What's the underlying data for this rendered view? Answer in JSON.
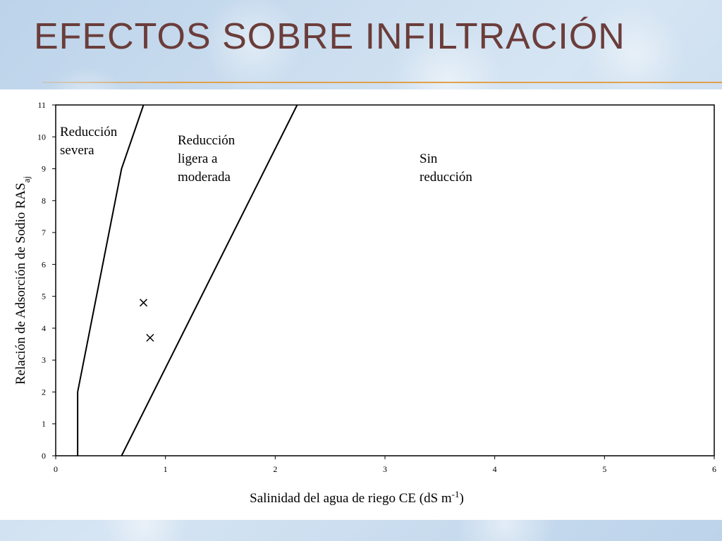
{
  "slide": {
    "title": "EFECTOS SOBRE INFILTRACIÓN"
  },
  "chart_data": {
    "type": "line",
    "xlim": [
      0,
      6
    ],
    "ylim": [
      0,
      11
    ],
    "x_ticks": [
      0,
      1,
      2,
      3,
      4,
      5,
      6
    ],
    "y_ticks": [
      0,
      1,
      2,
      3,
      4,
      5,
      6,
      7,
      8,
      9,
      10,
      11
    ],
    "xlabel": "Salinidad del agua de riego CE (dS m",
    "xlabel_sup": "-1",
    "xlabel_end": ")",
    "ylabel": "Relación de Adsorción de Sodio RAS",
    "ylabel_sub": "aj",
    "grid": false,
    "series": [
      {
        "x": [
          0.2,
          0.2,
          0.6,
          0.8
        ],
        "y": [
          0,
          2,
          9,
          11
        ]
      },
      {
        "x": [
          0.6,
          2.2
        ],
        "y": [
          0,
          11
        ]
      }
    ],
    "points": [
      {
        "x": 0.8,
        "y": 4.8
      },
      {
        "x": 0.86,
        "y": 3.7
      }
    ],
    "regions": [
      {
        "lines": [
          "Reducción",
          "severa"
        ]
      },
      {
        "lines": [
          "Reducción",
          "ligera a",
          "moderada"
        ]
      },
      {
        "lines": [
          "Sin",
          "reducción"
        ]
      }
    ]
  }
}
